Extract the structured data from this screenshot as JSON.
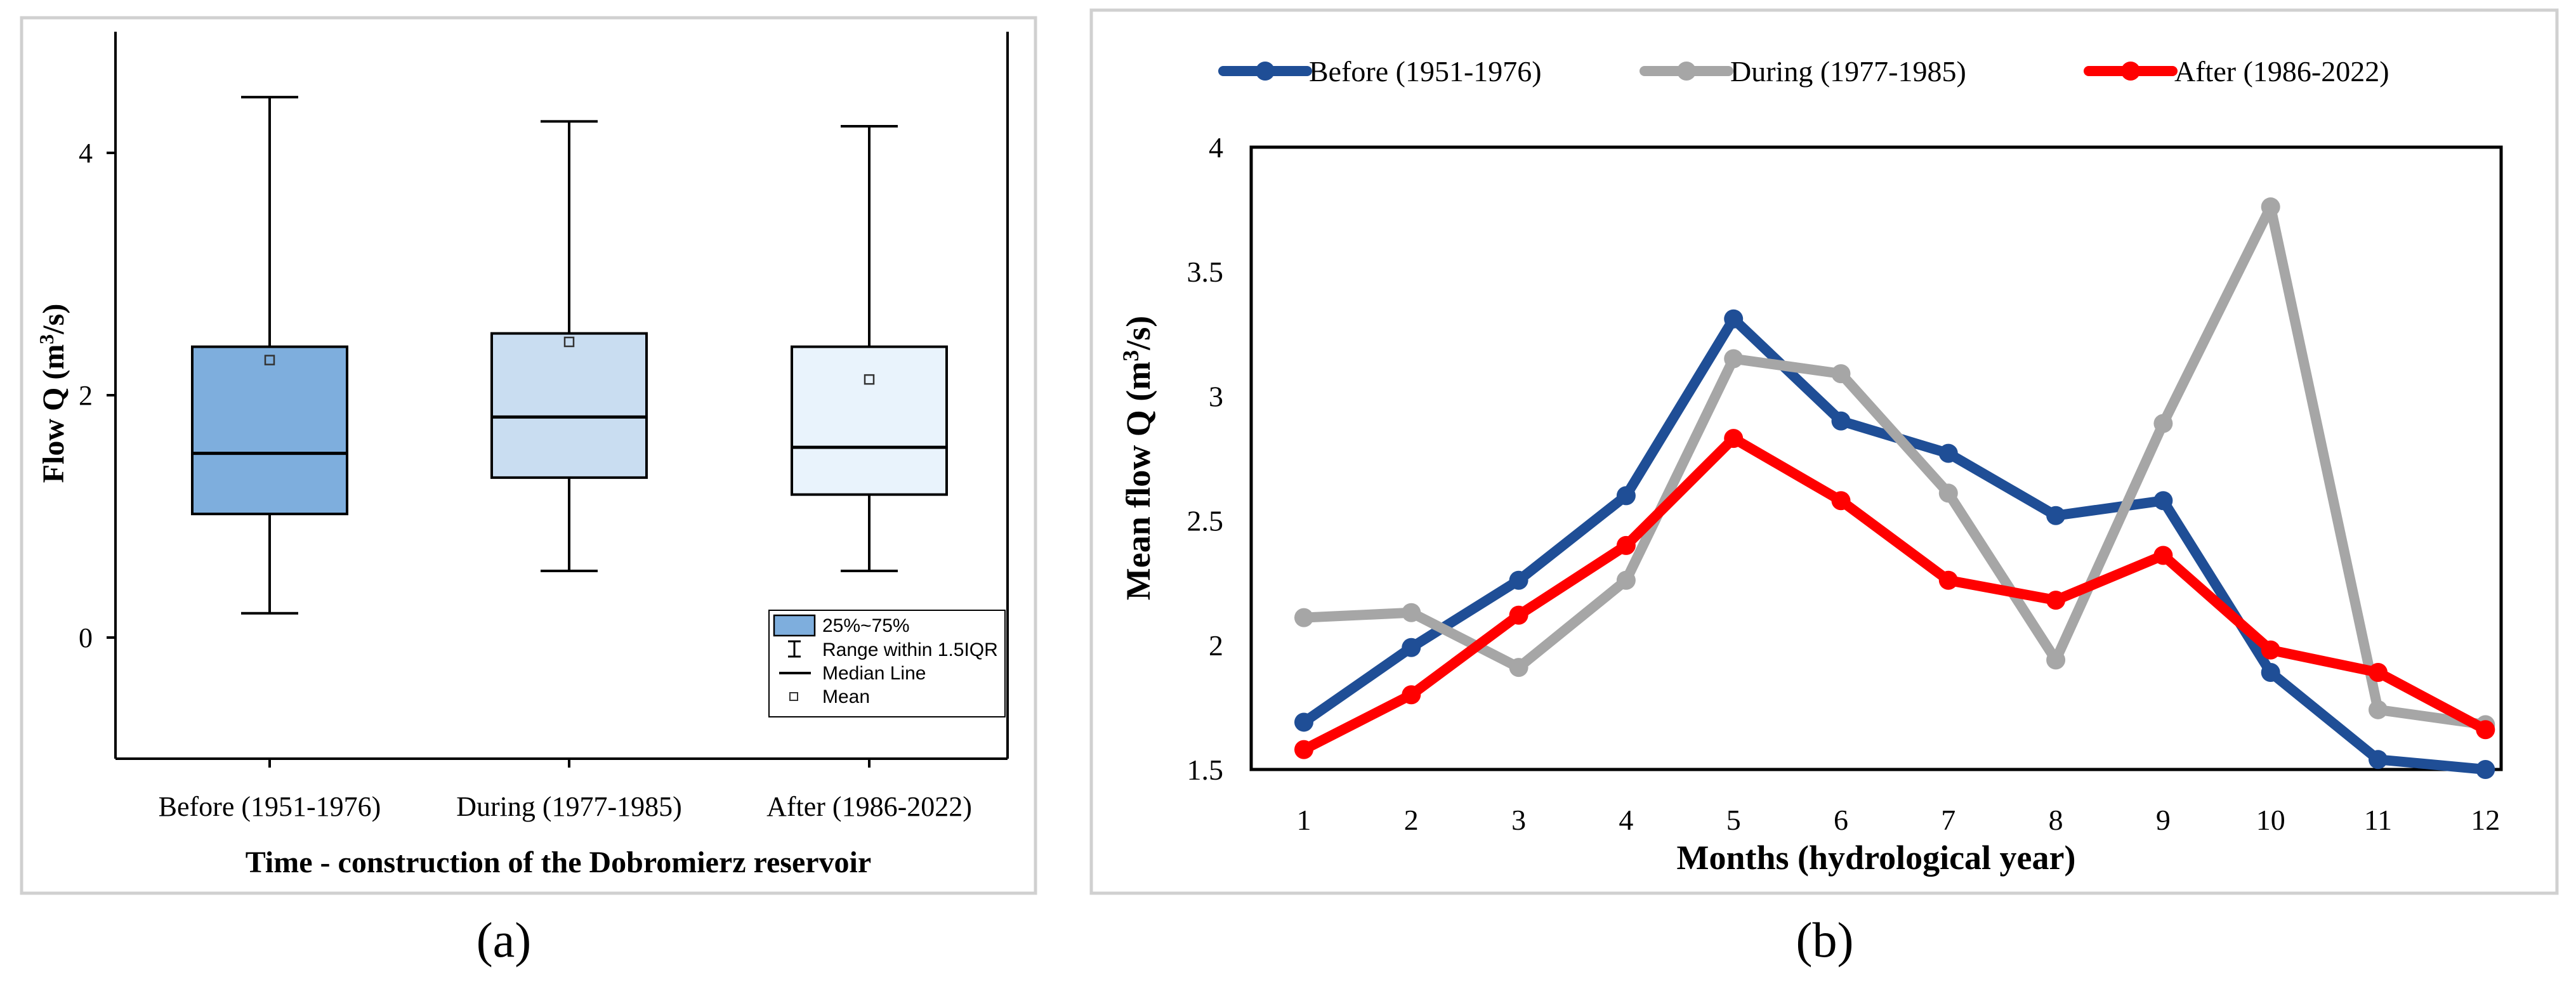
{
  "chart_data": [
    {
      "type": "box",
      "panel_label": "(a)",
      "xlabel": "Time - construction of the Dobromierz reservoir",
      "ylabel_main": "Flow Q (m",
      "ylabel_sup": "3",
      "ylabel_tail": "/s)",
      "ylim": [
        -1,
        5
      ],
      "yticks": [
        0,
        2,
        4
      ],
      "categories": [
        "Before (1951-1976)",
        "During (1977-1985)",
        "After (1986-2022)"
      ],
      "boxes": [
        {
          "whisker_low": 0.2,
          "q1": 1.02,
          "median": 1.52,
          "q3": 2.4,
          "whisker_high": 4.46,
          "mean": 2.29,
          "color": "#7eaedd"
        },
        {
          "whisker_low": 0.55,
          "q1": 1.32,
          "median": 1.82,
          "q3": 2.51,
          "whisker_high": 4.26,
          "mean": 2.44,
          "color": "#c9ddf1"
        },
        {
          "whisker_low": 0.55,
          "q1": 1.18,
          "median": 1.57,
          "q3": 2.4,
          "whisker_high": 4.22,
          "mean": 2.13,
          "color": "#e9f3fc"
        }
      ],
      "legend": [
        "25%~75%",
        "Range within 1.5IQR",
        "Median Line",
        "Mean"
      ]
    },
    {
      "type": "line",
      "panel_label": "(b)",
      "xlabel": "Months (hydrological year)",
      "ylabel_main": "Mean flow Q (m",
      "ylabel_sup": "3",
      "ylabel_tail": "/s)",
      "ylim": [
        1.5,
        4
      ],
      "yticks": [
        1.5,
        2,
        2.5,
        3,
        3.5,
        4
      ],
      "ytick_labels": [
        "1.5",
        "2",
        "2.5",
        "3",
        "3.5",
        "4"
      ],
      "x": [
        1,
        2,
        3,
        4,
        5,
        6,
        7,
        8,
        9,
        10,
        11,
        12
      ],
      "series": [
        {
          "name": "Before (1951-1976)",
          "color": "#1f4e96",
          "values": [
            1.69,
            1.99,
            2.26,
            2.6,
            3.31,
            2.9,
            2.77,
            2.52,
            2.58,
            1.89,
            1.54,
            1.5
          ]
        },
        {
          "name": "During (1977-1985)",
          "color": "#a6a6a6",
          "values": [
            2.11,
            2.13,
            1.91,
            2.26,
            3.15,
            3.09,
            2.61,
            1.94,
            2.89,
            3.76,
            1.74,
            1.68
          ]
        },
        {
          "name": "After (1986-2022)",
          "color": "#ff0000",
          "values": [
            1.58,
            1.8,
            2.12,
            2.4,
            2.83,
            2.58,
            2.26,
            2.18,
            2.36,
            1.98,
            1.89,
            1.66
          ]
        }
      ]
    }
  ]
}
